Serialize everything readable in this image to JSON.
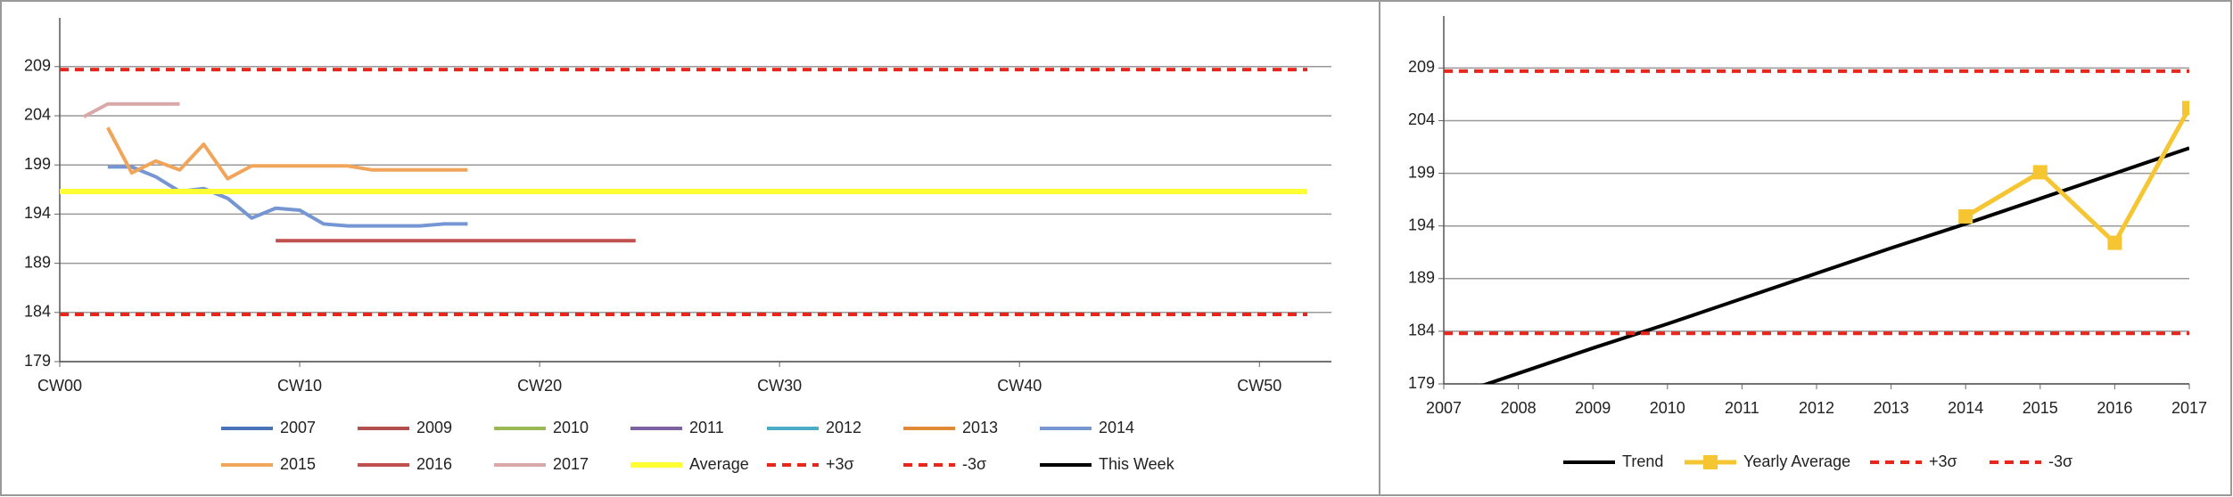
{
  "chart_data": [
    {
      "type": "line",
      "xlim": [
        0,
        53
      ],
      "xticks": [
        {
          "value": 0,
          "label": "CW00"
        },
        {
          "value": 10,
          "label": "CW10"
        },
        {
          "value": 20,
          "label": "CW20"
        },
        {
          "value": 30,
          "label": "CW30"
        },
        {
          "value": 40,
          "label": "CW40"
        },
        {
          "value": 50,
          "label": "CW50"
        }
      ],
      "ylim": [
        179,
        213.6
      ],
      "yticks": [
        179,
        184,
        189,
        194,
        199,
        204,
        209
      ],
      "grid": true,
      "legend": "bottom",
      "series": [
        {
          "name": "2007",
          "color": "#4a72b8",
          "x": [],
          "values": []
        },
        {
          "name": "2009",
          "color": "#b3504d",
          "x": [],
          "values": []
        },
        {
          "name": "2010",
          "color": "#98b954",
          "x": [],
          "values": []
        },
        {
          "name": "2011",
          "color": "#7d60a0",
          "x": [],
          "values": []
        },
        {
          "name": "2012",
          "color": "#4bacc6",
          "x": [],
          "values": []
        },
        {
          "name": "2013",
          "color": "#e08a36",
          "x": [],
          "values": []
        },
        {
          "name": "2014",
          "color": "#7596d2",
          "x": [
            2,
            3,
            4,
            5,
            6,
            7,
            8,
            9,
            10,
            11,
            12,
            13,
            14,
            15,
            16,
            17
          ],
          "values": [
            198.8,
            198.8,
            197.8,
            196.3,
            196.6,
            195.6,
            193.6,
            194.6,
            194.4,
            193.0,
            192.8,
            192.8,
            192.8,
            192.8,
            193.0,
            193.0
          ]
        },
        {
          "name": "2015",
          "color": "#f0a55a",
          "x": [
            2,
            3,
            4,
            5,
            6,
            7,
            8,
            9,
            10,
            11,
            12,
            13,
            14,
            15,
            16,
            17
          ],
          "values": [
            202.8,
            198.2,
            199.4,
            198.5,
            201.1,
            197.6,
            198.9,
            198.9,
            198.9,
            198.9,
            198.9,
            198.5,
            198.5,
            198.5,
            198.5,
            198.5
          ]
        },
        {
          "name": "2016",
          "color": "#c0504d",
          "x": [
            9,
            24
          ],
          "values": [
            191.3,
            191.3
          ]
        },
        {
          "name": "2017",
          "color": "#d9a8a8",
          "x": [
            1,
            2,
            3,
            4,
            5
          ],
          "values": [
            203.9,
            205.2,
            205.2,
            205.2,
            205.2
          ]
        },
        {
          "name": "Average",
          "color": "#ffff33",
          "line_width": 6,
          "x": [
            0,
            52
          ],
          "values": [
            196.3,
            196.3
          ]
        },
        {
          "name": "+3σ",
          "color": "#e8261c",
          "dash": true,
          "x": [
            0,
            52
          ],
          "values": [
            208.7,
            208.7
          ]
        },
        {
          "name": "-3σ",
          "color": "#e8261c",
          "dash": true,
          "x": [
            0,
            52
          ],
          "values": [
            183.8,
            183.8
          ]
        },
        {
          "name": "This Week",
          "color": "#000000",
          "x": [],
          "values": []
        }
      ]
    },
    {
      "type": "line",
      "xlim": [
        2007,
        2017
      ],
      "xticks": [
        2007,
        2008,
        2009,
        2010,
        2011,
        2012,
        2013,
        2014,
        2015,
        2016,
        2017
      ],
      "ylim": [
        179,
        213.6
      ],
      "yticks": [
        179,
        184,
        189,
        194,
        199,
        204,
        209
      ],
      "grid": true,
      "legend": "bottom",
      "series": [
        {
          "name": "Trend",
          "color": "#000000",
          "x": [
            2007,
            2008,
            2009,
            2010,
            2011,
            2012,
            2013,
            2014,
            2015,
            2016,
            2017
          ],
          "values": [
            177.6,
            180.0,
            182.4,
            184.7,
            187.1,
            189.5,
            191.9,
            194.2,
            196.6,
            199.0,
            201.4
          ]
        },
        {
          "name": "Yearly Average",
          "color": "#f5c532",
          "line_width": 5,
          "marker": "square",
          "x": [
            2014,
            2015,
            2016,
            2017
          ],
          "values": [
            194.9,
            199.1,
            192.4,
            205.2
          ]
        },
        {
          "name": "+3σ",
          "color": "#e8261c",
          "dash": true,
          "x": [
            2007,
            2017
          ],
          "values": [
            208.7,
            208.7
          ]
        },
        {
          "name": "-3σ",
          "color": "#e8261c",
          "dash": true,
          "x": [
            2007,
            2017
          ],
          "values": [
            183.8,
            183.8
          ]
        }
      ]
    }
  ]
}
